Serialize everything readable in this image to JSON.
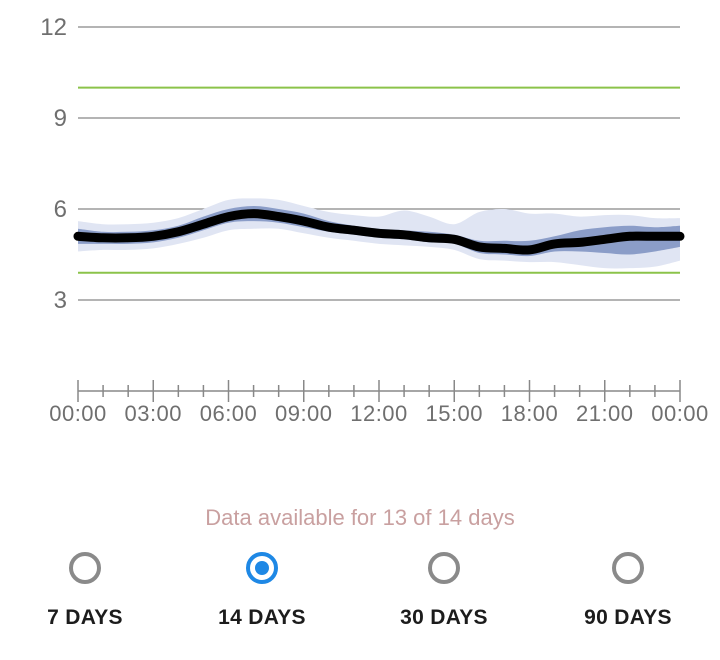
{
  "chart_data": {
    "type": "area",
    "x_ticks": [
      "00:00",
      "03:00",
      "06:00",
      "09:00",
      "12:00",
      "15:00",
      "18:00",
      "21:00",
      "00:00"
    ],
    "ylim": [
      0,
      12
    ],
    "y_ticks": [
      "12",
      "9",
      "6",
      "3"
    ],
    "y_tick_values": [
      12,
      9,
      6,
      3
    ],
    "target_range": [
      3.9,
      10
    ],
    "x": [
      0,
      1,
      2,
      3,
      4,
      5,
      6,
      7,
      8,
      9,
      10,
      11,
      12,
      13,
      14,
      15,
      16,
      17,
      18,
      19,
      20,
      21,
      22,
      23,
      24
    ],
    "series": [
      {
        "values": [
          5.1,
          5.05,
          5.05,
          5.1,
          5.25,
          5.5,
          5.75,
          5.85,
          5.75,
          5.6,
          5.4,
          5.3,
          5.2,
          5.15,
          5.05,
          5.0,
          4.75,
          4.7,
          4.65,
          4.85,
          4.9,
          5.0,
          5.1,
          5.1,
          5.1
        ]
      },
      {
        "values": [
          4.85,
          4.85,
          4.85,
          4.9,
          5.05,
          5.3,
          5.55,
          5.6,
          5.55,
          5.4,
          5.25,
          5.15,
          5.05,
          5.0,
          4.9,
          4.85,
          4.55,
          4.5,
          4.45,
          4.6,
          4.6,
          4.55,
          4.5,
          4.6,
          4.75
        ]
      },
      {
        "values": [
          5.35,
          5.25,
          5.25,
          5.3,
          5.45,
          5.75,
          6.0,
          6.1,
          6.0,
          5.85,
          5.6,
          5.45,
          5.35,
          5.3,
          5.25,
          5.15,
          4.95,
          4.95,
          4.95,
          5.1,
          5.3,
          5.4,
          5.45,
          5.4,
          5.45
        ]
      },
      {
        "values": [
          4.6,
          4.65,
          4.65,
          4.7,
          4.85,
          5.05,
          5.3,
          5.35,
          5.35,
          5.2,
          5.05,
          4.95,
          4.85,
          4.8,
          4.75,
          4.65,
          4.35,
          4.3,
          4.25,
          4.25,
          4.15,
          4.05,
          4.05,
          4.1,
          4.3
        ]
      },
      {
        "values": [
          5.6,
          5.5,
          5.5,
          5.55,
          5.7,
          6.0,
          6.3,
          6.35,
          6.3,
          6.1,
          5.9,
          5.8,
          5.75,
          5.95,
          5.75,
          5.5,
          5.9,
          6.0,
          5.85,
          5.85,
          5.75,
          5.8,
          5.8,
          5.7,
          5.7
        ]
      }
    ]
  },
  "colors": {
    "median": "#000000",
    "inner_band": "#8b9dc8",
    "outer_band": "#e0e5f3",
    "target_line": "#8bc34a",
    "grid": "#888888",
    "accent": "#1e88e5"
  },
  "availability_text": "Data available for 13 of 14 days",
  "ranges": [
    {
      "label": "7 DAYS",
      "selected": false
    },
    {
      "label": "14 DAYS",
      "selected": true
    },
    {
      "label": "30 DAYS",
      "selected": false
    },
    {
      "label": "90 DAYS",
      "selected": false
    }
  ]
}
